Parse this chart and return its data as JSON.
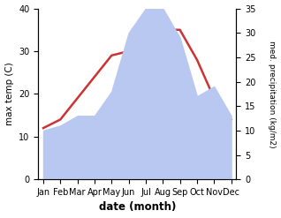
{
  "months": [
    "Jan",
    "Feb",
    "Mar",
    "Apr",
    "May",
    "Jun",
    "Jul",
    "Aug",
    "Sep",
    "Oct",
    "Nov",
    "Dec"
  ],
  "temp": [
    12,
    14,
    19,
    24,
    29,
    30,
    34,
    35,
    35,
    28,
    19,
    14
  ],
  "precip": [
    10,
    11,
    13,
    13,
    18,
    30,
    35,
    35,
    29,
    17,
    19,
    13
  ],
  "temp_color": "#cc3333",
  "precip_fill_color": "#b8c8f0",
  "xlabel": "date (month)",
  "ylabel_left": "max temp (C)",
  "ylabel_right": "med. precipitation (kg/m2)",
  "ylim_left": [
    0,
    40
  ],
  "ylim_right": [
    0,
    35
  ],
  "yticks_left": [
    0,
    10,
    20,
    30,
    40
  ],
  "yticks_right": [
    0,
    5,
    10,
    15,
    20,
    25,
    30,
    35
  ],
  "bg_color": "#ffffff"
}
